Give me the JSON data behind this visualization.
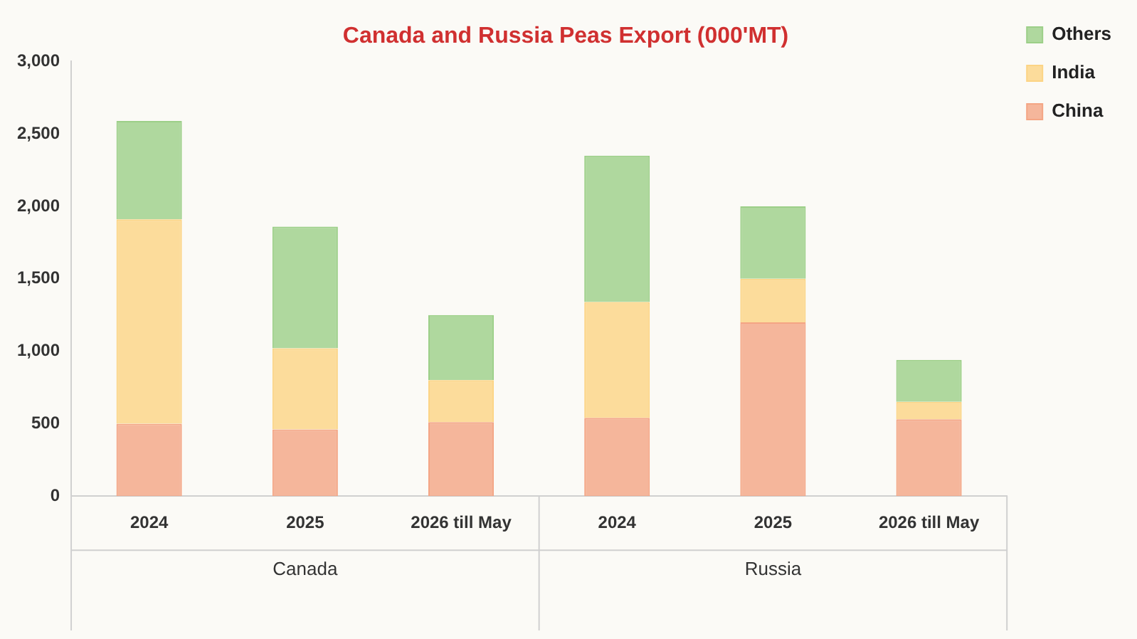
{
  "chart_data": {
    "type": "bar",
    "title": "Canada and Russia Peas Export (000'MT)",
    "categories": [
      "2024",
      "2025",
      "2026 till May",
      "2024",
      "2025",
      "2026 till May"
    ],
    "series": [
      {
        "name": "China",
        "color": "#f4a584",
        "values": [
          500,
          460,
          510,
          540,
          1200,
          530
        ]
      },
      {
        "name": "India",
        "color": "#fcd484",
        "values": [
          1410,
          560,
          290,
          800,
          300,
          120
        ]
      },
      {
        "name": "Others",
        "color": "#9ccf88",
        "values": [
          680,
          840,
          450,
          1010,
          500,
          290
        ]
      }
    ],
    "stacked": true,
    "ylim": [
      0,
      3000
    ],
    "yticks": [
      0,
      500,
      {
        "value": 1000,
        "label": "1,000"
      },
      {
        "value": 1500,
        "label": "1,500"
      },
      {
        "value": 2000,
        "label": "2,000"
      },
      {
        "value": 2500,
        "label": "2,500"
      },
      {
        "value": 3000,
        "label": "3,000"
      }
    ],
    "grid": false,
    "legend": "right",
    "annotations": [
      "Canada",
      "Russia"
    ]
  }
}
